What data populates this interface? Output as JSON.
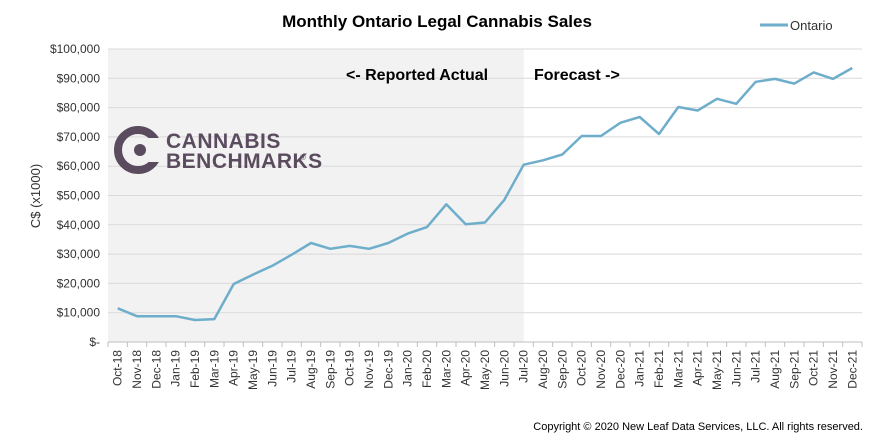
{
  "chart_data": {
    "type": "line",
    "title": "Monthly Ontario Legal Cannabis Sales",
    "ylabel": "C$ (x1000)",
    "xlabel": "",
    "ylim": [
      0,
      100000
    ],
    "ytick_labels": [
      "$-",
      "$10,000",
      "$20,000",
      "$30,000",
      "$40,000",
      "$50,000",
      "$60,000",
      "$70,000",
      "$80,000",
      "$90,000",
      "$100,000"
    ],
    "grid": true,
    "legend_position": "top-right",
    "categories": [
      "Oct-18",
      "Nov-18",
      "Dec-18",
      "Jan-19",
      "Feb-19",
      "Mar-19",
      "Apr-19",
      "May-19",
      "Jun-19",
      "Jul-19",
      "Aug-19",
      "Sep-19",
      "Oct-19",
      "Nov-19",
      "Dec-19",
      "Jan-20",
      "Feb-20",
      "Mar-20",
      "Apr-20",
      "May-20",
      "Jun-20",
      "Jul-20",
      "Aug-20",
      "Sep-20",
      "Oct-20",
      "Nov-20",
      "Dec-20",
      "Jan-21",
      "Feb-21",
      "Mar-21",
      "Apr-21",
      "May-21",
      "Jun-21",
      "Jul-21",
      "Aug-21",
      "Sep-21",
      "Oct-21",
      "Nov-21",
      "Dec-21"
    ],
    "series": [
      {
        "name": "Ontario",
        "values": [
          11500,
          8800,
          8800,
          8800,
          7500,
          7800,
          19800,
          23000,
          26000,
          29800,
          33800,
          31800,
          32800,
          31800,
          33800,
          37000,
          39200,
          47000,
          40200,
          40800,
          48500,
          60500,
          62000,
          64000,
          70300,
          70300,
          74800,
          76800,
          71000,
          80200,
          79000,
          83000,
          81300,
          88800,
          89800,
          88200,
          92000,
          89800,
          93500
        ]
      }
    ],
    "annotations": {
      "actual": "<- Reported Actual",
      "forecast": "Forecast ->"
    },
    "shaded_region": {
      "from": "Oct-18",
      "to": "Jul-20"
    }
  },
  "colors": {
    "line": "#6eaecb",
    "shade": "#f2f2f2",
    "grid": "#d9d9d9",
    "logo": "#5a4b5e"
  },
  "logo": {
    "line1": "CANNABIS",
    "line2": "BENCHMARKS",
    "mark": "®"
  },
  "copyright": "Copyright © 2020 New Leaf Data Services, LLC.  All rights reserved."
}
